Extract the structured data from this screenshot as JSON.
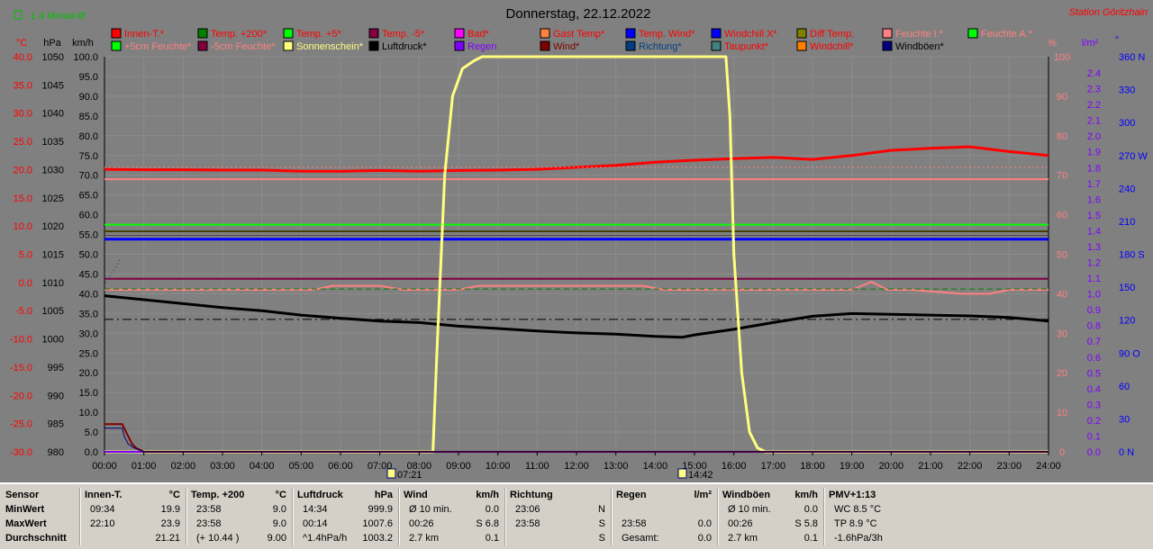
{
  "header": {
    "title": "Donnerstag, 22.12.2022",
    "station": "Station Göritzhain",
    "monthavg": "-1.4 Monat-Ø"
  },
  "legend": {
    "row1": [
      {
        "label": "Innen-T.*",
        "color": "#ff0000",
        "text": "#ff0000"
      },
      {
        "label": "Temp. +200*",
        "color": "#008000",
        "text": "#ff0000"
      },
      {
        "label": "Temp. +5*",
        "color": "#00ff00",
        "text": "#ff0000"
      },
      {
        "label": "Temp. -5*",
        "color": "#800040",
        "text": "#ff0000"
      },
      {
        "label": "Bad*",
        "color": "#ff00ff",
        "text": "#ff0000"
      },
      {
        "label": "Gast Temp*",
        "color": "#ff8040",
        "text": "#ff0000"
      },
      {
        "label": "Temp. Wind*",
        "color": "#0000ff",
        "text": "#ff0000"
      },
      {
        "label": "Windchill X*",
        "color": "#0000ff",
        "text": "#ff0000"
      },
      {
        "label": "Diff Temp.",
        "color": "#808000",
        "text": "#ff0000"
      },
      {
        "label": "Feuchte I.*",
        "color": "#ff8080",
        "text": "#ff8080"
      },
      {
        "label": "Feuchte A.*",
        "color": "#00ff00",
        "text": "#ff8080"
      }
    ],
    "row2": [
      {
        "label": "+5cm Feuchte*",
        "color": "#00ff00",
        "text": "#ff8080"
      },
      {
        "label": "-5cm Feuchte*",
        "color": "#800040",
        "text": "#ff8080"
      },
      {
        "label": "Sonnenschein*",
        "color": "#ffff80",
        "text": "#ffff80"
      },
      {
        "label": "Luftdruck*",
        "color": "#000000",
        "text": "#000000"
      },
      {
        "label": "Regen",
        "color": "#8000ff",
        "text": "#8000ff"
      },
      {
        "label": "Wind*",
        "color": "#800000",
        "text": "#800000"
      },
      {
        "label": "Richtung*",
        "color": "#004080",
        "text": "#004080"
      },
      {
        "label": "Taupunkt*",
        "color": "#408080",
        "text": "#ff0000"
      },
      {
        "label": "Windchill*",
        "color": "#ff8000",
        "text": "#ff0000"
      },
      {
        "label": "Windböen*",
        "color": "#000080",
        "text": "#000000"
      }
    ]
  },
  "axes": {
    "unit_c": "°C",
    "unit_hpa": "hPa",
    "unit_kmh": "km/h",
    "unit_pct": "%",
    "unit_lm2": "l/m²",
    "unit_deg": "°",
    "temp_ticks": [
      "40.0",
      "35.0",
      "30.0",
      "25.0",
      "20.0",
      "15.0",
      "10.0",
      "5.0",
      "0.0",
      "-5.0",
      "-10.0",
      "-15.0",
      "-20.0",
      "-25.0",
      "-30.0"
    ],
    "hpa_ticks": [
      "1050",
      "1045",
      "1040",
      "1035",
      "1030",
      "1025",
      "1020",
      "1015",
      "1010",
      "1005",
      "1000",
      "995",
      "990",
      "985",
      "980"
    ],
    "kmh_ticks": [
      "100.0",
      "95.0",
      "90.0",
      "85.0",
      "80.0",
      "75.0",
      "70.0",
      "65.0",
      "60.0",
      "55.0",
      "50.0",
      "45.0",
      "40.0",
      "35.0",
      "30.0",
      "25.0",
      "20.0",
      "15.0",
      "10.0",
      "5.0",
      "0.0"
    ],
    "pct_ticks": [
      "100",
      "90",
      "80",
      "70",
      "60",
      "50",
      "40",
      "30",
      "20",
      "10",
      "0"
    ],
    "rain_ticks": [
      "2.4",
      "2.3",
      "2.2",
      "2.1",
      "2.0",
      "1.9",
      "1.8",
      "1.7",
      "1.6",
      "1.5",
      "1.4",
      "1.3",
      "1.2",
      "1.1",
      "1.0",
      "0.9",
      "0.8",
      "0.7",
      "0.6",
      "0.5",
      "0.4",
      "0.3",
      "0.2",
      "0.1",
      "0.0"
    ],
    "dir_ticks": [
      "360 N",
      "330",
      "300",
      "270 W",
      "240",
      "210",
      "180 S",
      "150",
      "120",
      "90 O",
      "60",
      "30",
      "0 N"
    ],
    "time_ticks": [
      "00:00",
      "01:00",
      "02:00",
      "03:00",
      "04:00",
      "05:00",
      "06:00",
      "07:00",
      "08:00",
      "09:00",
      "10:00",
      "11:00",
      "12:00",
      "13:00",
      "14:00",
      "15:00",
      "16:00",
      "17:00",
      "18:00",
      "19:00",
      "20:00",
      "21:00",
      "22:00",
      "23:00",
      "24:00"
    ],
    "sunrise": "07:21",
    "sunset": "14:42"
  },
  "chart_data": {
    "type": "line",
    "title": "Donnerstag, 22.12.2022",
    "x_range": [
      "00:00",
      "24:00"
    ],
    "temp_range": [
      -30,
      40
    ],
    "kmh_range": [
      0,
      100
    ],
    "pct_range": [
      0,
      100
    ],
    "hpa_range": [
      980,
      1050
    ],
    "series": [
      {
        "name": "Innen-T.*",
        "color": "#ff0000",
        "width": 3,
        "x": [
          0,
          1,
          2,
          3,
          4,
          5,
          6,
          7,
          8,
          9,
          10,
          11,
          12,
          13,
          14,
          15,
          16,
          17,
          18,
          19,
          20,
          21,
          22,
          23,
          24
        ],
        "y": [
          71.5,
          71.4,
          71.4,
          71.3,
          71.3,
          71.0,
          71.0,
          71.2,
          71.0,
          71.2,
          71.3,
          71.5,
          72.0,
          72.5,
          73.3,
          73.8,
          74.2,
          74.5,
          74.0,
          75.0,
          76.3,
          76.8,
          77.2,
          76.0,
          75.0
        ],
        "scale": "kmh"
      },
      {
        "name": "Feuchte I.*",
        "color": "#ff8080",
        "width": 2,
        "x": [
          0,
          24
        ],
        "y": [
          69,
          69
        ],
        "scale": "pct"
      },
      {
        "name": "Taupunkt*",
        "color": "#ff8080",
        "width": 1,
        "dash": "2,3",
        "x": [
          0,
          24
        ],
        "y": [
          72,
          72
        ],
        "scale": "pct"
      },
      {
        "name": "Temp. +5*",
        "color": "#00ff00",
        "width": 2,
        "x": [
          0,
          24
        ],
        "y": [
          57.5,
          57.5
        ],
        "scale": "kmh"
      },
      {
        "name": "Diff Temp.",
        "color": "#404000",
        "width": 2,
        "x": [
          0,
          24
        ],
        "y": [
          55.8,
          55.8
        ],
        "scale": "kmh"
      },
      {
        "name": "Temp. +200*",
        "color": "#404040",
        "width": 1,
        "x": [
          0,
          24
        ],
        "y": [
          54.8,
          54.8
        ],
        "scale": "kmh"
      },
      {
        "name": "Temp. Wind*",
        "color": "#0000ff",
        "width": 3,
        "x": [
          0,
          24
        ],
        "y": [
          53.8,
          53.8
        ],
        "scale": "kmh"
      },
      {
        "name": "Temp. -5*",
        "color": "#800040",
        "width": 2,
        "x": [
          0,
          24
        ],
        "y": [
          43.8,
          43.8
        ],
        "scale": "kmh"
      },
      {
        "name": "Feuchte A.*",
        "color": "#ff8080",
        "width": 2,
        "x": [
          0,
          5.3,
          5.8,
          7.0,
          7.6,
          9.0,
          9.5,
          13.7,
          14.2,
          19.0,
          19.5,
          19.9,
          20.5,
          21.8,
          22.5,
          23.0,
          24
        ],
        "y": [
          41,
          41,
          42,
          42,
          41,
          41,
          42,
          42,
          41,
          41,
          43,
          41,
          41,
          40,
          40,
          41,
          41
        ],
        "scale": "kmh"
      },
      {
        "name": "Taupunkt-dash",
        "color": "#008000",
        "width": 1,
        "dash": "6,4",
        "x": [
          0,
          24
        ],
        "y": [
          41.2,
          41.2
        ],
        "scale": "kmh"
      },
      {
        "name": "Luftdruck-dash",
        "color": "#000000",
        "width": 1,
        "dash": "10,4,2,4",
        "x": [
          0,
          24
        ],
        "y": [
          33.5,
          33.5
        ],
        "scale": "kmh"
      },
      {
        "name": "Luftdruck*",
        "color": "#000000",
        "width": 3,
        "x": [
          0,
          1,
          2,
          3,
          4,
          5,
          6,
          7,
          8,
          9,
          10,
          11,
          12,
          13,
          14,
          14.7,
          15,
          16,
          17,
          18,
          19,
          20,
          21,
          22,
          23,
          24
        ],
        "y": [
          39.5,
          38.5,
          37.5,
          36.5,
          35.7,
          34.6,
          33.8,
          33.1,
          32.7,
          31.8,
          31.2,
          30.6,
          30.1,
          29.8,
          29.2,
          29.0,
          29.6,
          31.0,
          32.7,
          34.3,
          35.0,
          34.8,
          34.6,
          34.4,
          34.0,
          33.1
        ],
        "scale": "kmh"
      },
      {
        "name": "Sonnenschein*",
        "color": "#ffff80",
        "width": 3,
        "x": [
          0,
          8.35,
          8.45,
          8.65,
          8.85,
          9.1,
          9.4,
          9.6,
          9.8,
          15.8,
          15.9,
          16.0,
          16.2,
          16.4,
          16.6,
          16.8,
          17.0,
          24
        ],
        "y": [
          0,
          0,
          25,
          70,
          90,
          97,
          99,
          100,
          100,
          100,
          85,
          50,
          20,
          5,
          1,
          0,
          0,
          0
        ],
        "scale": "kmh"
      },
      {
        "name": "Regen",
        "color": "#8000ff",
        "width": 2,
        "x": [
          0,
          24
        ],
        "y": [
          0,
          0
        ],
        "scale": "kmh"
      },
      {
        "name": "Wind*",
        "color": "#800000",
        "width": 2,
        "x": [
          0,
          0.45,
          0.5,
          0.6,
          0.7,
          0.8,
          0.9,
          1.0,
          24
        ],
        "y": [
          7,
          7,
          6,
          4,
          2,
          1,
          0.5,
          0,
          0
        ],
        "scale": "kmh"
      },
      {
        "name": "Windböen*",
        "color": "#000080",
        "width": 1,
        "x": [
          0,
          0.45,
          0.5,
          0.6,
          0.75,
          0.9,
          1.0,
          24
        ],
        "y": [
          6,
          6,
          4,
          2,
          1,
          0.3,
          0,
          0
        ],
        "scale": "kmh"
      },
      {
        "name": "Richtung*",
        "color": "#004080",
        "width": 1,
        "dash": "1,3",
        "x": [
          0,
          0.1,
          0.2,
          0.3,
          0.4
        ],
        "y": [
          42,
          44,
          45.5,
          47,
          49
        ],
        "scale": "kmh"
      }
    ]
  },
  "stats": {
    "rowlabels": [
      "Sensor",
      "MinWert",
      "MaxWert",
      "Durchschnitt"
    ],
    "cols": [
      {
        "h1": "Innen-T.",
        "h2": "°C",
        "rows": [
          [
            "09:34",
            "19.9"
          ],
          [
            "22:10",
            "23.9"
          ],
          [
            "",
            "21.21"
          ]
        ]
      },
      {
        "h1": "Temp. +200",
        "h2": "°C",
        "rows": [
          [
            "23:58",
            "9.0"
          ],
          [
            "23:58",
            "9.0"
          ],
          [
            "(+ 10.44 )",
            "9.00"
          ]
        ]
      },
      {
        "h1": "Luftdruck",
        "h2": "hPa",
        "rows": [
          [
            "14:34",
            "999.9"
          ],
          [
            "00:14",
            "1007.6"
          ],
          [
            "^1.4hPa/h",
            "1003.2"
          ]
        ]
      },
      {
        "h1": "Wind",
        "h2": "km/h",
        "rows": [
          [
            "Ø 10 min.",
            "0.0"
          ],
          [
            "00:26",
            "S 6.8"
          ],
          [
            "2.7 km",
            "0.1"
          ]
        ]
      },
      {
        "h1": "Richtung",
        "h2": "",
        "rows": [
          [
            "23:06",
            "N"
          ],
          [
            "23:58",
            "S"
          ],
          [
            "",
            "S"
          ]
        ]
      },
      {
        "h1": "Regen",
        "h2": "l/m²",
        "rows": [
          [
            "",
            ""
          ],
          [
            "23:58",
            "0.0"
          ],
          [
            "Gesamt:",
            "0.0"
          ]
        ]
      },
      {
        "h1": "Windböen",
        "h2": "km/h",
        "rows": [
          [
            "Ø 10 min.",
            "0.0"
          ],
          [
            "00:26",
            "S 5.8"
          ],
          [
            "2.7 km",
            "0.1"
          ]
        ]
      },
      {
        "h1": "PMV+1:13",
        "h2": "",
        "rows": [
          [
            "WC 8.5 °C",
            ""
          ],
          [
            "TP 8.9 °C",
            ""
          ],
          [
            "-1.6hPa/3h",
            ""
          ]
        ]
      }
    ]
  }
}
